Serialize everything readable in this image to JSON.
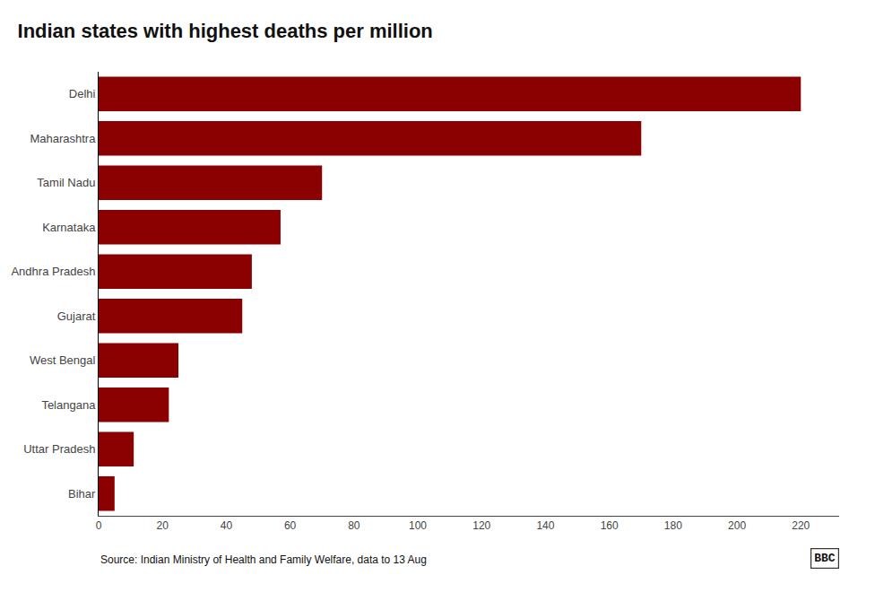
{
  "chart_data": {
    "type": "bar",
    "orientation": "horizontal",
    "title": "Indian states with highest deaths per million",
    "categories": [
      "Delhi",
      "Maharashtra",
      "Tamil Nadu",
      "Karnataka",
      "Andhra Pradesh",
      "Gujarat",
      "West Bengal",
      "Telangana",
      "Uttar Pradesh",
      "Bihar"
    ],
    "values": [
      220,
      170,
      70,
      57,
      48,
      45,
      25,
      22,
      11,
      5
    ],
    "color": "#8B0000",
    "xlim": [
      0,
      232
    ],
    "xticks": [
      0,
      20,
      40,
      60,
      80,
      100,
      120,
      140,
      160,
      180,
      200,
      220
    ],
    "grid": false,
    "annotations": [
      "Source: Indian Ministry of Health and Family Welfare, data to 13 Aug",
      "BBC"
    ]
  }
}
